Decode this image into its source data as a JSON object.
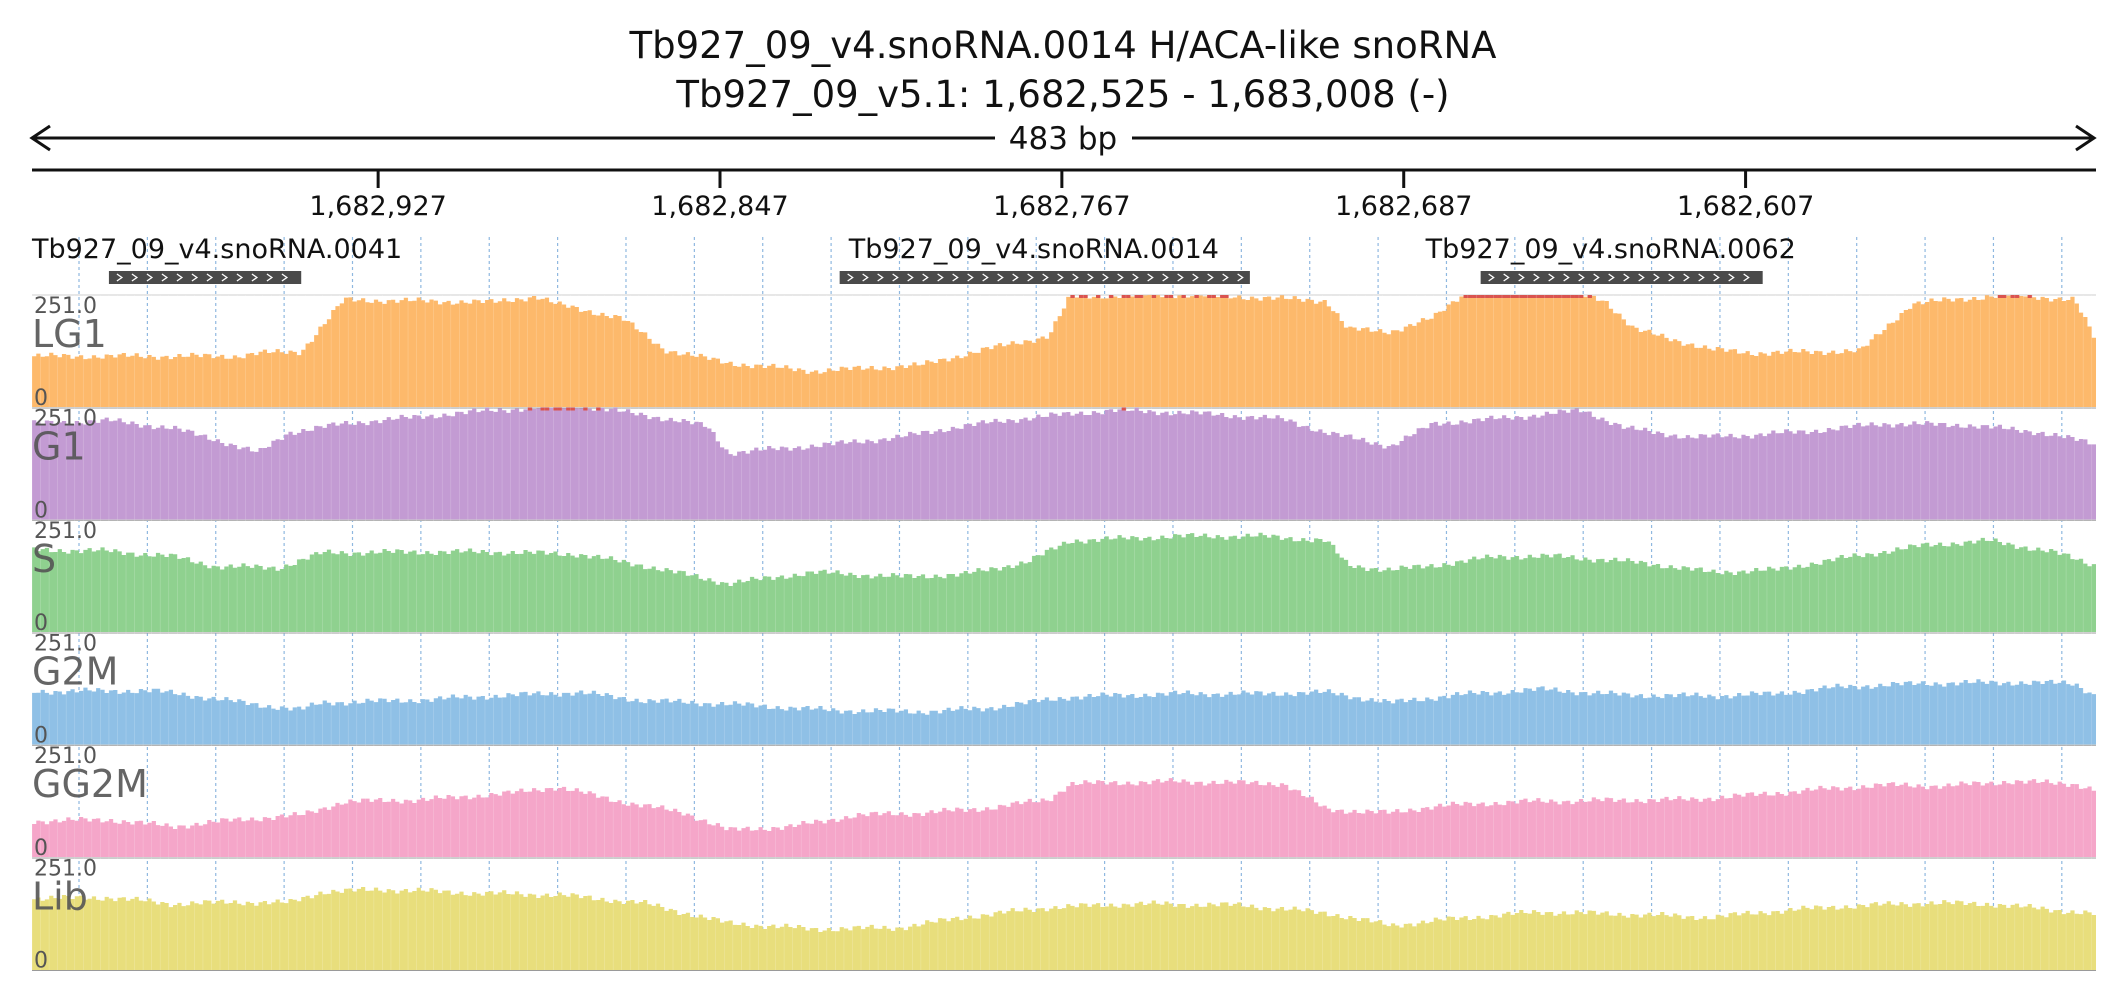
{
  "title": "Tb927_09_v4.snoRNA.0014  H/ACA-like snoRNA",
  "subtitle": "Tb927_09_v5.1: 1,682,525 - 1,683,008 (-)",
  "span_label": "483 bp",
  "chart_data": {
    "type": "area",
    "x_range": [
      1683008,
      1682525
    ],
    "x_ticks": [
      {
        "value": 1682927,
        "label": "1,682,927"
      },
      {
        "value": 1682847,
        "label": "1,682,847"
      },
      {
        "value": 1682767,
        "label": "1,682,767"
      },
      {
        "value": 1682687,
        "label": "1,682,687"
      },
      {
        "value": 1682607,
        "label": "1,682,607"
      }
    ],
    "genes": [
      {
        "name": "Tb927_09_v4.snoRNA.0041",
        "start": 1682990,
        "end": 1682945
      },
      {
        "name": "Tb927_09_v4.snoRNA.0014",
        "start": 1682819,
        "end": 1682723
      },
      {
        "name": "Tb927_09_v4.snoRNA.0062",
        "start": 1682669,
        "end": 1682603
      }
    ],
    "ylim": [
      0,
      251.0
    ],
    "ymax_label": "251.0",
    "ymin_label": "0",
    "grid": true,
    "tracks": [
      {
        "name": "LG1",
        "color": "#fdb96b",
        "clip_color": "#d9534f",
        "profile": [
          [
            1683008,
            115
          ],
          [
            1682960,
            115
          ],
          [
            1682955,
            122
          ],
          [
            1682945,
            125
          ],
          [
            1682935,
            240
          ],
          [
            1682920,
            238
          ],
          [
            1682900,
            235
          ],
          [
            1682890,
            248
          ],
          [
            1682885,
            230
          ],
          [
            1682870,
            200
          ],
          [
            1682860,
            130
          ],
          [
            1682845,
            100
          ],
          [
            1682825,
            82
          ],
          [
            1682800,
            95
          ],
          [
            1682785,
            130
          ],
          [
            1682770,
            160
          ],
          [
            1682765,
            248
          ],
          [
            1682740,
            252
          ],
          [
            1682720,
            245
          ],
          [
            1682705,
            238
          ],
          [
            1682700,
            175
          ],
          [
            1682690,
            170
          ],
          [
            1682680,
            200
          ],
          [
            1682672,
            262
          ],
          [
            1682650,
            262
          ],
          [
            1682640,
            240
          ],
          [
            1682633,
            175
          ],
          [
            1682615,
            130
          ],
          [
            1682605,
            122
          ],
          [
            1682580,
            127
          ],
          [
            1682568,
            232
          ],
          [
            1682545,
            252
          ],
          [
            1682530,
            240
          ],
          [
            1682525,
            150
          ]
        ]
      },
      {
        "name": "G1",
        "color": "#c39bd3",
        "clip_color": "#d9534f",
        "profile": [
          [
            1683008,
            215
          ],
          [
            1682990,
            222
          ],
          [
            1682975,
            205
          ],
          [
            1682965,
            180
          ],
          [
            1682955,
            150
          ],
          [
            1682948,
            195
          ],
          [
            1682935,
            215
          ],
          [
            1682920,
            228
          ],
          [
            1682900,
            245
          ],
          [
            1682880,
            255
          ],
          [
            1682865,
            235
          ],
          [
            1682850,
            210
          ],
          [
            1682845,
            150
          ],
          [
            1682820,
            170
          ],
          [
            1682805,
            185
          ],
          [
            1682790,
            210
          ],
          [
            1682775,
            228
          ],
          [
            1682755,
            245
          ],
          [
            1682735,
            238
          ],
          [
            1682715,
            225
          ],
          [
            1682705,
            195
          ],
          [
            1682690,
            165
          ],
          [
            1682680,
            215
          ],
          [
            1682660,
            230
          ],
          [
            1682645,
            245
          ],
          [
            1682635,
            205
          ],
          [
            1682620,
            185
          ],
          [
            1682605,
            190
          ],
          [
            1682590,
            200
          ],
          [
            1682575,
            215
          ],
          [
            1682555,
            212
          ],
          [
            1682538,
            196
          ],
          [
            1682525,
            170
          ]
        ]
      },
      {
        "name": "S",
        "color": "#8fd18f",
        "clip_color": "#d9534f",
        "profile": [
          [
            1683008,
            185
          ],
          [
            1682990,
            182
          ],
          [
            1682975,
            170
          ],
          [
            1682965,
            148
          ],
          [
            1682950,
            145
          ],
          [
            1682940,
            178
          ],
          [
            1682920,
            180
          ],
          [
            1682900,
            180
          ],
          [
            1682880,
            175
          ],
          [
            1682865,
            150
          ],
          [
            1682845,
            110
          ],
          [
            1682825,
            135
          ],
          [
            1682805,
            125
          ],
          [
            1682790,
            130
          ],
          [
            1682775,
            158
          ],
          [
            1682765,
            205
          ],
          [
            1682740,
            215
          ],
          [
            1682720,
            215
          ],
          [
            1682705,
            205
          ],
          [
            1682700,
            150
          ],
          [
            1682690,
            140
          ],
          [
            1682680,
            150
          ],
          [
            1682665,
            170
          ],
          [
            1682650,
            170
          ],
          [
            1682630,
            155
          ],
          [
            1682615,
            135
          ],
          [
            1682600,
            140
          ],
          [
            1682585,
            165
          ],
          [
            1682565,
            195
          ],
          [
            1682550,
            205
          ],
          [
            1682535,
            180
          ],
          [
            1682525,
            150
          ]
        ]
      },
      {
        "name": "G2M",
        "color": "#8fc0e6",
        "clip_color": "#d9534f",
        "profile": [
          [
            1683008,
            120
          ],
          [
            1682980,
            122
          ],
          [
            1682968,
            108
          ],
          [
            1682955,
            90
          ],
          [
            1682945,
            80
          ],
          [
            1682940,
            95
          ],
          [
            1682920,
            100
          ],
          [
            1682900,
            110
          ],
          [
            1682880,
            118
          ],
          [
            1682865,
            100
          ],
          [
            1682845,
            92
          ],
          [
            1682820,
            78
          ],
          [
            1682800,
            75
          ],
          [
            1682785,
            82
          ],
          [
            1682765,
            108
          ],
          [
            1682740,
            115
          ],
          [
            1682720,
            115
          ],
          [
            1682705,
            118
          ],
          [
            1682690,
            95
          ],
          [
            1682675,
            112
          ],
          [
            1682655,
            125
          ],
          [
            1682635,
            112
          ],
          [
            1682615,
            110
          ],
          [
            1682600,
            115
          ],
          [
            1682585,
            130
          ],
          [
            1682565,
            138
          ],
          [
            1682545,
            140
          ],
          [
            1682530,
            138
          ],
          [
            1682525,
            110
          ]
        ]
      },
      {
        "name": "GG2M",
        "color": "#f5a6c9",
        "clip_color": "#d9534f",
        "profile": [
          [
            1683008,
            82
          ],
          [
            1682990,
            85
          ],
          [
            1682975,
            70
          ],
          [
            1682960,
            85
          ],
          [
            1682945,
            95
          ],
          [
            1682935,
            125
          ],
          [
            1682915,
            130
          ],
          [
            1682895,
            145
          ],
          [
            1682885,
            158
          ],
          [
            1682870,
            125
          ],
          [
            1682855,
            100
          ],
          [
            1682845,
            62
          ],
          [
            1682830,
            70
          ],
          [
            1682815,
            95
          ],
          [
            1682800,
            100
          ],
          [
            1682785,
            110
          ],
          [
            1682770,
            130
          ],
          [
            1682765,
            165
          ],
          [
            1682740,
            170
          ],
          [
            1682715,
            165
          ],
          [
            1682705,
            108
          ],
          [
            1682690,
            100
          ],
          [
            1682680,
            115
          ],
          [
            1682660,
            125
          ],
          [
            1682640,
            128
          ],
          [
            1682620,
            130
          ],
          [
            1682605,
            140
          ],
          [
            1682590,
            152
          ],
          [
            1682575,
            162
          ],
          [
            1682560,
            160
          ],
          [
            1682545,
            170
          ],
          [
            1682530,
            165
          ],
          [
            1682525,
            150
          ]
        ]
      },
      {
        "name": "Lib",
        "color": "#e8de7c",
        "clip_color": "#d9534f",
        "profile": [
          [
            1683008,
            160
          ],
          [
            1682990,
            162
          ],
          [
            1682975,
            148
          ],
          [
            1682960,
            152
          ],
          [
            1682948,
            150
          ],
          [
            1682940,
            175
          ],
          [
            1682925,
            180
          ],
          [
            1682905,
            172
          ],
          [
            1682885,
            168
          ],
          [
            1682865,
            150
          ],
          [
            1682845,
            105
          ],
          [
            1682825,
            92
          ],
          [
            1682805,
            95
          ],
          [
            1682790,
            118
          ],
          [
            1682770,
            140
          ],
          [
            1682750,
            148
          ],
          [
            1682725,
            145
          ],
          [
            1682705,
            128
          ],
          [
            1682690,
            100
          ],
          [
            1682675,
            115
          ],
          [
            1682655,
            130
          ],
          [
            1682635,
            125
          ],
          [
            1682615,
            118
          ],
          [
            1682600,
            132
          ],
          [
            1682585,
            142
          ],
          [
            1682565,
            150
          ],
          [
            1682550,
            148
          ],
          [
            1682535,
            135
          ],
          [
            1682525,
            125
          ]
        ]
      }
    ]
  }
}
